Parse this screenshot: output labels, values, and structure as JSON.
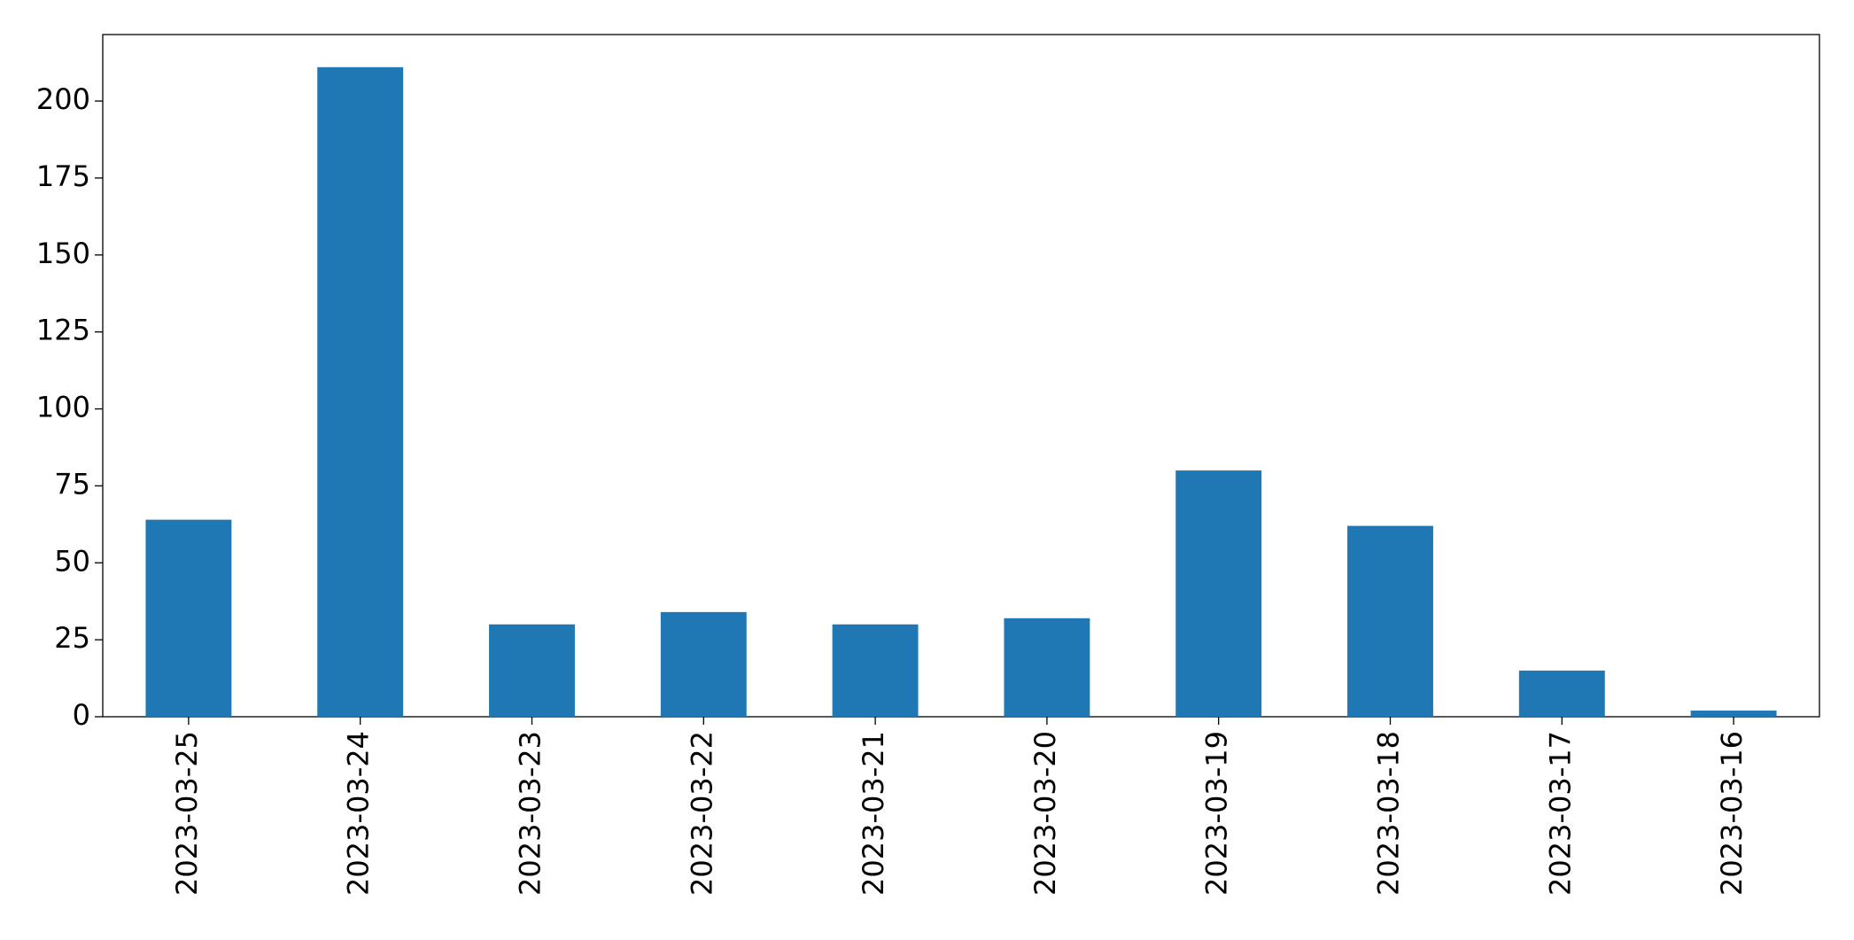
{
  "chart_data": {
    "type": "bar",
    "categories": [
      "2023-03-25",
      "2023-03-24",
      "2023-03-23",
      "2023-03-22",
      "2023-03-21",
      "2023-03-20",
      "2023-03-19",
      "2023-03-18",
      "2023-03-17",
      "2023-03-16"
    ],
    "values": [
      64,
      211,
      30,
      34,
      30,
      32,
      80,
      62,
      15,
      2
    ],
    "color": "#1f77b4",
    "ylim": [
      0,
      221.6
    ],
    "yticks": [
      0,
      25,
      50,
      75,
      100,
      125,
      150,
      175,
      200
    ],
    "grid": false
  }
}
